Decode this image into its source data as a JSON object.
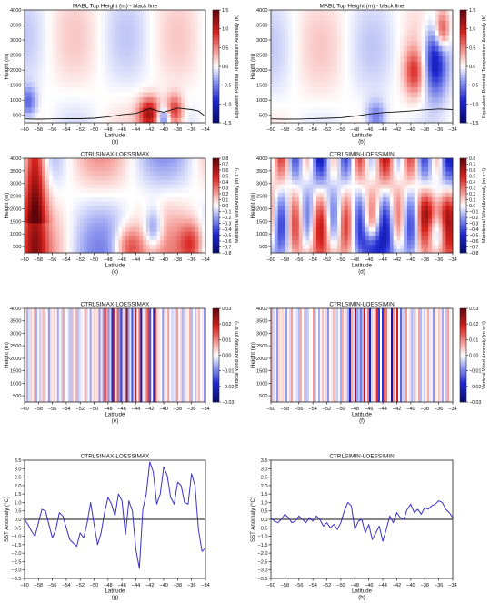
{
  "figure": {
    "panels": [
      {
        "id": "a",
        "title": "MABL Top Height (m) - black line",
        "caption": "(a)",
        "kind": "field",
        "field": "theta_e",
        "seed": 11,
        "side": "left"
      },
      {
        "id": "b",
        "title": "MABL Top Height (m) - black line",
        "caption": "(b)",
        "kind": "field",
        "field": "theta_e",
        "seed": 23,
        "side": "right"
      },
      {
        "id": "c",
        "title": "CTRLSIMAX-LOESSIMAX",
        "caption": "(c)",
        "kind": "field",
        "field": "meridional",
        "seed": 37,
        "side": "left"
      },
      {
        "id": "d",
        "title": "CTRLSIMIN-LOESSIMIN",
        "caption": "(d)",
        "kind": "field",
        "field": "meridional",
        "seed": 41,
        "side": "right"
      },
      {
        "id": "e",
        "title": "CTRLSIMAX-LOESSIMAX",
        "caption": "(e)",
        "kind": "field",
        "field": "vertical",
        "seed": 53,
        "side": "left"
      },
      {
        "id": "f",
        "title": "CTRLSIMIN-LOESSIMIN",
        "caption": "(f)",
        "kind": "field",
        "field": "vertical",
        "seed": 67,
        "side": "right"
      },
      {
        "id": "g",
        "title": "CTRLSIMAX-LOESSIMAX",
        "caption": "(g)",
        "kind": "line",
        "side": "left"
      },
      {
        "id": "h",
        "title": "CTRLSIMIN-LOESSIMIN",
        "caption": "(h)",
        "kind": "line",
        "side": "right"
      }
    ]
  },
  "chart_data": [
    {
      "type": "heatmap",
      "panel": "a",
      "title": "MABL Top Height (m) - black line",
      "xlabel": "Latitude",
      "ylabel": "Height (m)",
      "xlim": [
        -60,
        -34
      ],
      "ylim": [
        250,
        4000
      ],
      "xticks": [
        -60,
        -58,
        -56,
        -54,
        -52,
        -50,
        -48,
        -46,
        -44,
        -42,
        -40,
        -38,
        -36,
        -34
      ],
      "yticks": [
        500,
        1000,
        1500,
        2000,
        2500,
        3000,
        3500,
        4000
      ],
      "colorbar": {
        "label": "Equivalent Potential Temperature Anomaly (K)",
        "range": [
          -1.5,
          1.5
        ],
        "ticks": [
          -1.5,
          -1.0,
          -0.5,
          0.0,
          0.5,
          1.0,
          1.5
        ]
      },
      "mabl_line": {
        "x": [
          -60,
          -58,
          -56,
          -54,
          -52,
          -50,
          -48,
          -46,
          -44,
          -42,
          -41,
          -40,
          -38,
          -36,
          -35,
          -34
        ],
        "y": [
          380,
          370,
          380,
          390,
          385,
          400,
          450,
          520,
          560,
          720,
          650,
          600,
          740,
          690,
          640,
          460
        ]
      }
    },
    {
      "type": "heatmap",
      "panel": "b",
      "title": "MABL Top Height (m) - black line",
      "xlabel": "Latitude",
      "ylabel": "Height (m)",
      "xlim": [
        -60,
        -34
      ],
      "ylim": [
        250,
        4000
      ],
      "xticks": [
        -60,
        -58,
        -56,
        -54,
        -52,
        -50,
        -48,
        -46,
        -44,
        -42,
        -40,
        -38,
        -36,
        -34
      ],
      "yticks": [
        500,
        1000,
        1500,
        2000,
        2500,
        3000,
        3500,
        4000
      ],
      "colorbar": {
        "label": "Equivalent Potential Temperature Anomaly (K)",
        "range": [
          -1.5,
          1.5
        ],
        "ticks": [
          -1.5,
          -1.0,
          -0.5,
          0.0,
          0.5,
          1.0,
          1.5
        ]
      },
      "mabl_line": {
        "x": [
          -60,
          -58,
          -56,
          -54,
          -52,
          -50,
          -48,
          -46,
          -44,
          -42,
          -40,
          -38,
          -36,
          -34
        ],
        "y": [
          380,
          370,
          375,
          390,
          400,
          420,
          470,
          540,
          590,
          610,
          640,
          680,
          710,
          690
        ]
      }
    },
    {
      "type": "heatmap",
      "panel": "c",
      "title": "CTRLSIMAX-LOESSIMAX",
      "xlabel": "Latitude",
      "ylabel": "Height (m)",
      "xlim": [
        -60,
        -34
      ],
      "ylim": [
        250,
        4000
      ],
      "xticks": [
        -60,
        -58,
        -56,
        -54,
        -52,
        -50,
        -48,
        -46,
        -44,
        -42,
        -40,
        -38,
        -36,
        -34
      ],
      "yticks": [
        500,
        1000,
        1500,
        2000,
        2500,
        3000,
        3500,
        4000
      ],
      "colorbar": {
        "label": "Meridional Wind Anomaly (m s⁻¹)",
        "range": [
          -0.8,
          0.8
        ],
        "ticks": [
          -0.8,
          -0.7,
          -0.6,
          -0.5,
          -0.4,
          -0.3,
          -0.2,
          -0.1,
          0.0,
          0.1,
          0.2,
          0.3,
          0.4,
          0.5,
          0.6,
          0.7,
          0.8
        ]
      }
    },
    {
      "type": "heatmap",
      "panel": "d",
      "title": "CTRLSIMIN-LOESSIMIN",
      "xlabel": "Latitude",
      "ylabel": "Height (m)",
      "xlim": [
        -60,
        -34
      ],
      "ylim": [
        250,
        4000
      ],
      "xticks": [
        -60,
        -58,
        -56,
        -54,
        -52,
        -50,
        -48,
        -46,
        -44,
        -42,
        -40,
        -38,
        -36,
        -34
      ],
      "yticks": [
        500,
        1000,
        1500,
        2000,
        2500,
        3000,
        3500,
        4000
      ],
      "colorbar": {
        "label": "Meridional Wind Anomaly (m s⁻¹)",
        "range": [
          -0.8,
          0.8
        ],
        "ticks": [
          -0.8,
          -0.7,
          -0.6,
          -0.5,
          -0.4,
          -0.3,
          -0.2,
          -0.1,
          0.0,
          0.1,
          0.2,
          0.3,
          0.4,
          0.5,
          0.6,
          0.7,
          0.8
        ]
      }
    },
    {
      "type": "heatmap",
      "panel": "e",
      "title": "CTRLSIMAX-LOESSIMAX",
      "xlabel": "Latitude",
      "ylabel": "Height (m)",
      "xlim": [
        -60,
        -34
      ],
      "ylim": [
        250,
        4000
      ],
      "xticks": [
        -60,
        -58,
        -56,
        -54,
        -52,
        -50,
        -48,
        -46,
        -44,
        -42,
        -40,
        -38,
        -36,
        -34
      ],
      "yticks": [
        500,
        1000,
        1500,
        2000,
        2500,
        3000,
        3500,
        4000
      ],
      "colorbar": {
        "label": "Vertical Wind Anomaly (m s⁻¹)",
        "range": [
          -0.03,
          0.03
        ],
        "ticks": [
          -0.03,
          -0.02,
          -0.01,
          0.0,
          0.01,
          0.02,
          0.03
        ]
      }
    },
    {
      "type": "heatmap",
      "panel": "f",
      "title": "CTRLSIMIN-LOESSIMIN",
      "xlabel": "Latitude",
      "ylabel": "Height (m)",
      "xlim": [
        -60,
        -34
      ],
      "ylim": [
        250,
        4000
      ],
      "xticks": [
        -60,
        -58,
        -56,
        -54,
        -52,
        -50,
        -48,
        -46,
        -44,
        -42,
        -40,
        -38,
        -36,
        -34
      ],
      "yticks": [
        500,
        1000,
        1500,
        2000,
        2500,
        3000,
        3500,
        4000
      ],
      "colorbar": {
        "label": "Vertical Wind Anomaly (m s⁻¹)",
        "range": [
          -0.03,
          0.03
        ],
        "ticks": [
          -0.03,
          -0.02,
          -0.01,
          0.0,
          0.01,
          0.02,
          0.03
        ]
      }
    },
    {
      "type": "line",
      "panel": "g",
      "title": "CTRLSIMAX-LOESSIMAX",
      "xlabel": "Latitude",
      "ylabel": "SST Anomaly (°C)",
      "xlim": [
        -60,
        -34
      ],
      "ylim": [
        -3.5,
        3.5
      ],
      "xticks": [
        -60,
        -58,
        -56,
        -54,
        -52,
        -50,
        -48,
        -46,
        -44,
        -42,
        -40,
        -38,
        -36,
        -34
      ],
      "yticks": [
        -3.5,
        -3.0,
        -2.5,
        -2.0,
        -1.5,
        -1.0,
        -0.5,
        0.0,
        0.5,
        1.0,
        1.5,
        2.0,
        2.5,
        3.0,
        3.5
      ],
      "x": [
        -60,
        -59.5,
        -59,
        -58.5,
        -58,
        -57.5,
        -57,
        -56.5,
        -56,
        -55.5,
        -55,
        -54.5,
        -54,
        -53.5,
        -53,
        -52.5,
        -52,
        -51.5,
        -51,
        -50.5,
        -50,
        -49.5,
        -49,
        -48.5,
        -48,
        -47.5,
        -47,
        -46.5,
        -46,
        -45.5,
        -45,
        -44.5,
        -44,
        -43.5,
        -43,
        -42.5,
        -42,
        -41.5,
        -41,
        -40.5,
        -40,
        -39.5,
        -39,
        -38.5,
        -38,
        -37.5,
        -37,
        -36.5,
        -36,
        -35.5,
        -35,
        -34.5,
        -34
      ],
      "y": [
        0.0,
        -0.3,
        -0.7,
        -1.0,
        -0.2,
        0.6,
        0.5,
        -0.3,
        -1.1,
        -0.6,
        0.4,
        0.2,
        -0.5,
        -1.2,
        -1.4,
        -1.6,
        -0.8,
        -1.1,
        -0.2,
        1.0,
        -0.3,
        -1.5,
        -0.8,
        0.4,
        1.3,
        0.9,
        0.2,
        1.5,
        1.1,
        -0.9,
        1.1,
        0.5,
        -1.8,
        -2.9,
        0.6,
        1.5,
        3.4,
        2.8,
        0.9,
        1.5,
        3.1,
        2.6,
        1.3,
        0.9,
        2.2,
        2.0,
        1.0,
        0.9,
        2.7,
        2.0,
        -0.6,
        -1.9,
        -1.7
      ],
      "zero_line": true
    },
    {
      "type": "line",
      "panel": "h",
      "title": "CTRLSIMIN-LOESSIMIN",
      "xlabel": "Latitude",
      "ylabel": "SST Anomaly (°C)",
      "xlim": [
        -60,
        -34
      ],
      "ylim": [
        -3.5,
        3.5
      ],
      "xticks": [
        -60,
        -58,
        -56,
        -54,
        -52,
        -50,
        -48,
        -46,
        -44,
        -42,
        -40,
        -38,
        -36,
        -34
      ],
      "yticks": [
        -3.5,
        -3.0,
        -2.5,
        -2.0,
        -1.5,
        -1.0,
        -0.5,
        0.0,
        0.5,
        1.0,
        1.5,
        2.0,
        2.5,
        3.0,
        3.5
      ],
      "x": [
        -60,
        -59.5,
        -59,
        -58.5,
        -58,
        -57.5,
        -57,
        -56.5,
        -56,
        -55.5,
        -55,
        -54.5,
        -54,
        -53.5,
        -53,
        -52.5,
        -52,
        -51.5,
        -51,
        -50.5,
        -50,
        -49.5,
        -49,
        -48.5,
        -48,
        -47.5,
        -47,
        -46.5,
        -46,
        -45.5,
        -45,
        -44.5,
        -44,
        -43.5,
        -43,
        -42.5,
        -42,
        -41.5,
        -41,
        -40.5,
        -40,
        -39.5,
        -39,
        -38.5,
        -38,
        -37.5,
        -37,
        -36.5,
        -36,
        -35.5,
        -35,
        -34.5,
        -34
      ],
      "y": [
        0.1,
        -0.1,
        -0.2,
        0.0,
        0.3,
        0.1,
        -0.2,
        -0.1,
        0.2,
        0.0,
        -0.2,
        0.1,
        -0.1,
        0.2,
        0.0,
        -0.4,
        -0.2,
        -0.5,
        -0.3,
        -0.6,
        -0.2,
        0.5,
        1.0,
        0.8,
        -0.6,
        -0.1,
        0.0,
        -0.8,
        -0.3,
        -1.2,
        -0.8,
        -0.4,
        -1.3,
        -0.6,
        0.2,
        -0.2,
        0.4,
        0.1,
        0.0,
        0.6,
        0.9,
        0.4,
        0.6,
        0.3,
        0.7,
        0.6,
        0.8,
        0.9,
        1.1,
        1.0,
        0.6,
        0.4,
        0.1
      ],
      "zero_line": true
    }
  ]
}
